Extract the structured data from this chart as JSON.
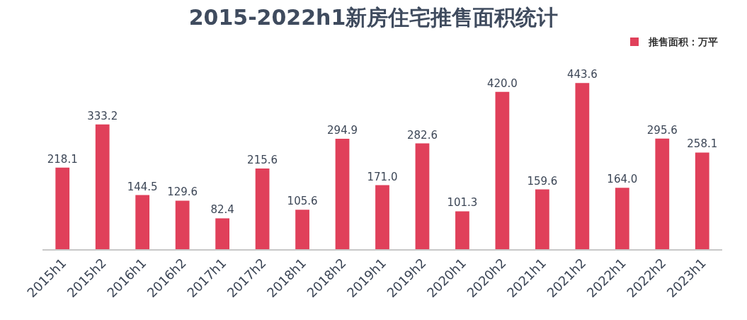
{
  "chart_data": {
    "type": "bar",
    "title": "2015-2022h1新房住宅推售面积统计",
    "categories": [
      "2015h1",
      "2015h2",
      "2016h1",
      "2016h2",
      "2017h1",
      "2017h2",
      "2018h1",
      "2018h2",
      "2019h1",
      "2019h2",
      "2020h1",
      "2020h2",
      "2021h1",
      "2021h2",
      "2022h1",
      "2022h2",
      "2023h1"
    ],
    "series": [
      {
        "name": "推售面积：万平",
        "color": "#e0405a",
        "values": [
          218.1,
          333.2,
          144.5,
          129.6,
          82.4,
          215.6,
          105.6,
          294.9,
          171.0,
          282.6,
          101.3,
          420.0,
          159.6,
          443.6,
          164.0,
          295.6,
          258.1
        ],
        "value_labels": [
          "218.1",
          "333.2",
          "144.5",
          "129.6",
          "82.4",
          "215.6",
          "105.6",
          "294.9",
          "171.0",
          "282.6",
          "101.3",
          "420.0",
          "159.6",
          "443.6",
          "164.0",
          "295.6",
          "258.1"
        ]
      }
    ],
    "legend": "top right",
    "grid": false,
    "tick_labels": "x"
  }
}
